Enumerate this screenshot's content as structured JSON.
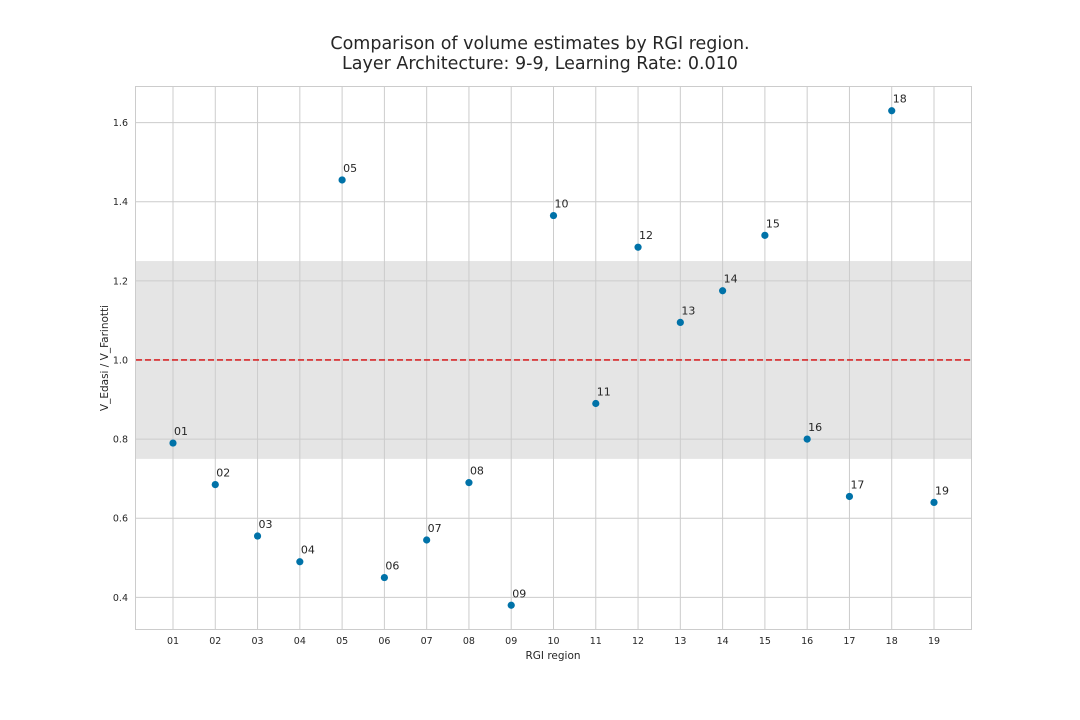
{
  "chart_data": {
    "type": "scatter",
    "title": "Comparison of volume estimates by RGI region.",
    "subtitle": "Layer Architecture: 9-9, Learning Rate: 0.010",
    "xlabel": "RGI region",
    "ylabel": "V_Edasi / V_Farinotti",
    "categories": [
      "01",
      "02",
      "03",
      "04",
      "05",
      "06",
      "07",
      "08",
      "09",
      "10",
      "11",
      "12",
      "13",
      "14",
      "15",
      "16",
      "17",
      "18",
      "19"
    ],
    "values": [
      0.79,
      0.685,
      0.555,
      0.49,
      1.455,
      0.45,
      0.545,
      0.69,
      0.38,
      1.365,
      0.89,
      1.285,
      1.095,
      1.175,
      1.315,
      0.8,
      0.655,
      1.63,
      0.64
    ],
    "point_labels": [
      "01",
      "02",
      "03",
      "04",
      "05",
      "06",
      "07",
      "08",
      "09",
      "10",
      "11",
      "12",
      "13",
      "14",
      "15",
      "16",
      "17",
      "18",
      "19"
    ],
    "ylim": [
      0.32,
      1.69
    ],
    "yticks": [
      "0.4",
      "0.6",
      "0.8",
      "1.0",
      "1.2",
      "1.4",
      "1.6"
    ],
    "reference_line": {
      "y": 1.0,
      "color": "#d62728",
      "style": "dashed"
    },
    "shaded_band": {
      "y0": 0.75,
      "y1": 1.25,
      "color": "#e5e5e5"
    },
    "marker_color": "#0072a8",
    "grid": true,
    "legend": "none"
  }
}
